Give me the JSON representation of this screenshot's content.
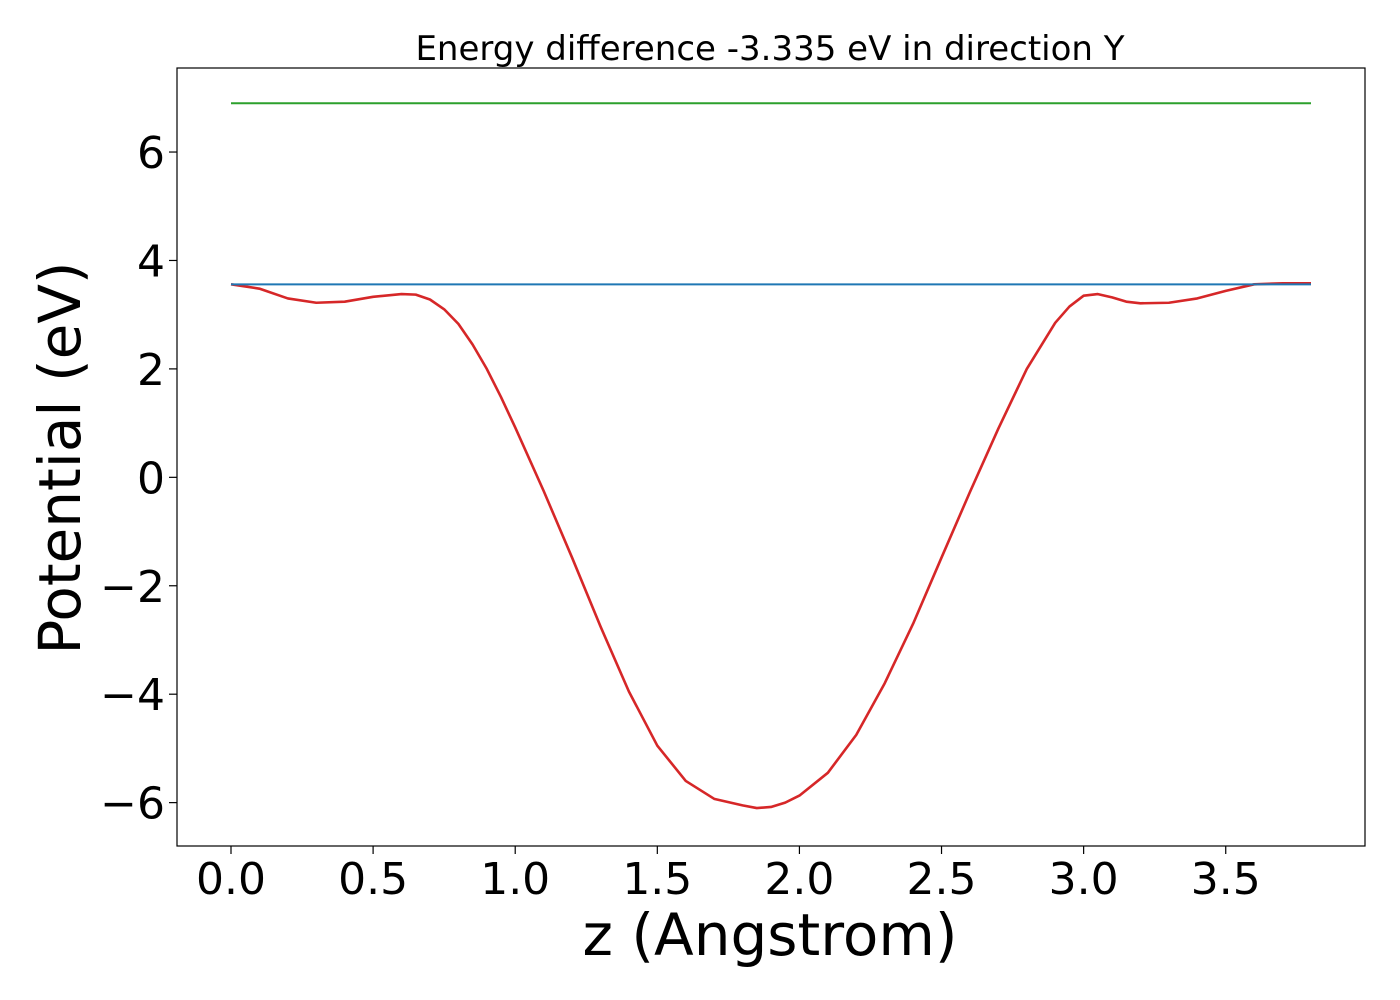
{
  "chart_data": {
    "type": "line",
    "title": "Energy difference -3.335 eV in direction Y",
    "xlabel": "z (Angstrom)",
    "ylabel": "Potential (eV)",
    "xlim": [
      -0.19,
      3.99
    ],
    "ylim": [
      -6.8,
      7.55
    ],
    "xticks": [
      0.0,
      0.5,
      1.0,
      1.5,
      2.0,
      2.5,
      3.0,
      3.5
    ],
    "xtick_labels": [
      "0.0",
      "0.5",
      "1.0",
      "1.5",
      "2.0",
      "2.5",
      "3.0",
      "3.5"
    ],
    "yticks": [
      -6,
      -4,
      -2,
      0,
      2,
      4,
      6
    ],
    "ytick_labels": [
      "−6",
      "−4",
      "−2",
      "0",
      "2",
      "4",
      "6"
    ],
    "grid": false,
    "series": [
      {
        "color": "#d62728",
        "x": [
          0.0,
          0.1,
          0.2,
          0.3,
          0.4,
          0.5,
          0.6,
          0.65,
          0.7,
          0.75,
          0.8,
          0.85,
          0.9,
          0.95,
          1.0,
          1.1,
          1.2,
          1.3,
          1.4,
          1.5,
          1.6,
          1.7,
          1.8,
          1.85,
          1.9,
          1.95,
          2.0,
          2.1,
          2.2,
          2.3,
          2.4,
          2.5,
          2.6,
          2.7,
          2.8,
          2.9,
          2.95,
          3.0,
          3.05,
          3.1,
          3.15,
          3.2,
          3.3,
          3.4,
          3.5,
          3.6,
          3.7,
          3.8
        ],
        "y": [
          3.56,
          3.48,
          3.3,
          3.22,
          3.24,
          3.33,
          3.38,
          3.37,
          3.28,
          3.1,
          2.83,
          2.45,
          2.0,
          1.48,
          0.92,
          -0.25,
          -1.48,
          -2.75,
          -3.95,
          -4.95,
          -5.6,
          -5.93,
          -6.05,
          -6.1,
          -6.08,
          -6.0,
          -5.87,
          -5.45,
          -4.75,
          -3.8,
          -2.7,
          -1.48,
          -0.27,
          0.9,
          2.0,
          2.85,
          3.15,
          3.35,
          3.38,
          3.32,
          3.24,
          3.21,
          3.22,
          3.3,
          3.44,
          3.56,
          3.58,
          3.58
        ],
        "note_x_is_sampled": false
      },
      {
        "color": "#1f77b4",
        "x": [
          0.0,
          3.8
        ],
        "y": [
          3.56,
          3.56
        ]
      },
      {
        "color": "#2ca02c",
        "x": [
          0.0,
          3.8
        ],
        "y": [
          6.9,
          6.9
        ]
      }
    ]
  }
}
